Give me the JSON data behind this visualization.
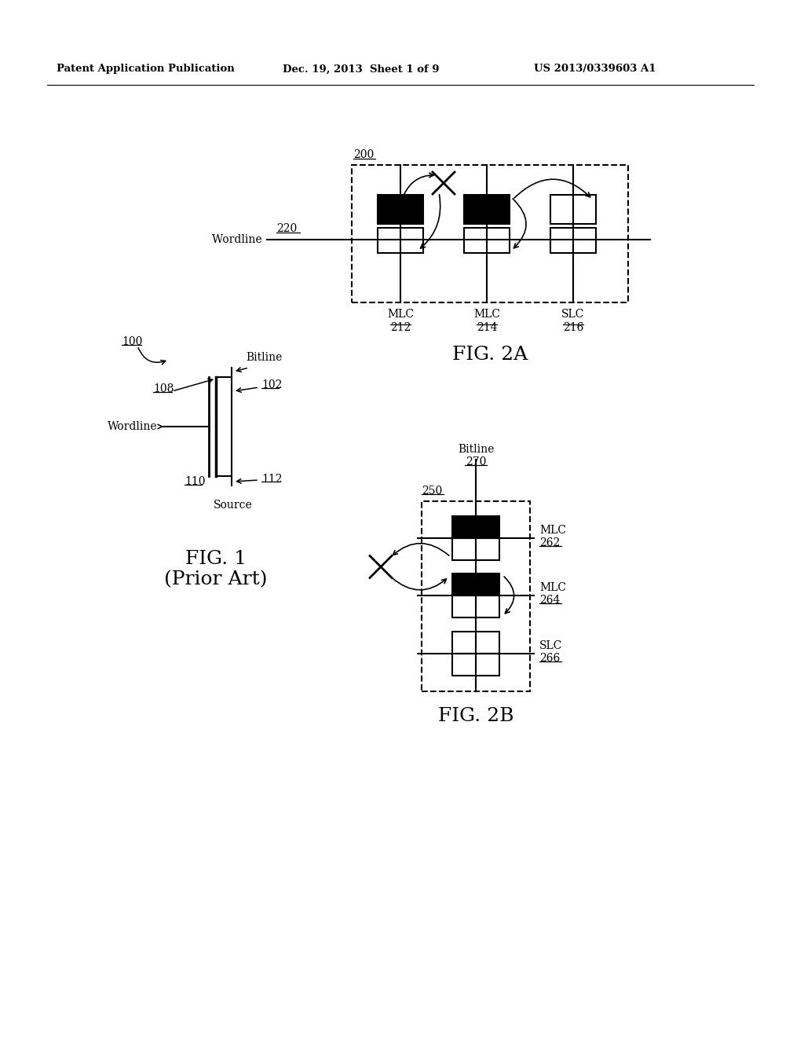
{
  "bg_color": "#ffffff",
  "header_left": "Patent Application Publication",
  "header_mid": "Dec. 19, 2013  Sheet 1 of 9",
  "header_right": "US 2013/0339603 A1",
  "fig1_label": "FIG. 1\n(Prior Art)",
  "fig2a_label": "FIG. 2A",
  "fig2b_label": "FIG. 2B"
}
